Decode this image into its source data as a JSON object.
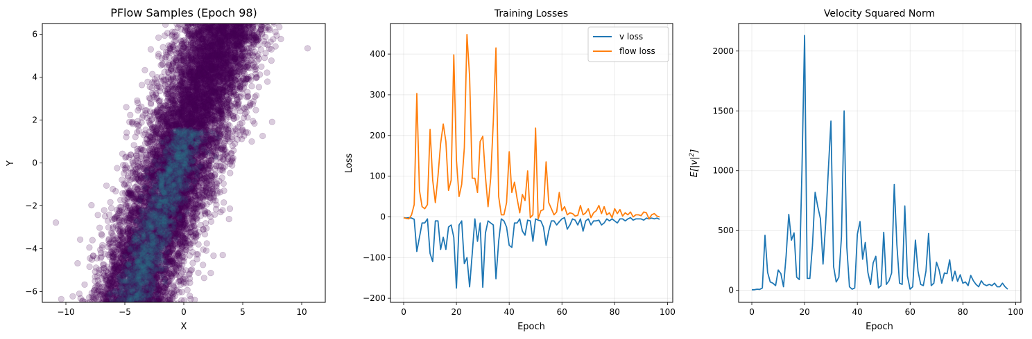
{
  "chart_data": [
    {
      "type": "scatter",
      "title": "PFlow Samples (Epoch 98)",
      "xlabel": "X",
      "ylabel": "Y",
      "xlim": [
        -12,
        12
      ],
      "ylim": [
        -6.5,
        6.5
      ],
      "xticks": [
        -10,
        -5,
        0,
        5,
        10
      ],
      "xtick_labels": [
        "−10",
        "−5",
        "0",
        "5",
        "10"
      ],
      "yticks": [
        -6,
        -4,
        -2,
        0,
        2,
        4,
        6
      ],
      "ytick_labels": [
        "−6",
        "−4",
        "−2",
        "0",
        "2",
        "4",
        "6"
      ],
      "grid": false,
      "point_color": "#440154",
      "dense_color": "#2a788e",
      "point_alpha": 0.2,
      "distribution": {
        "shape": "tilted elongated band",
        "center_line_bottom": [
          -4.5,
          -6.5
        ],
        "center_line_top": [
          3.5,
          6.5
        ],
        "x_spread_sd": 1.8,
        "n_points": 9000
      }
    },
    {
      "type": "line",
      "title": "Training Losses",
      "xlabel": "Epoch",
      "ylabel": "Loss",
      "xlim": [
        -5,
        102
      ],
      "ylim": [
        -210,
        475
      ],
      "xticks": [
        0,
        20,
        40,
        60,
        80,
        100
      ],
      "xtick_labels": [
        "0",
        "20",
        "40",
        "60",
        "80",
        "100"
      ],
      "yticks": [
        -200,
        -100,
        0,
        100,
        200,
        300,
        400
      ],
      "ytick_labels": [
        "−200",
        "−100",
        "0",
        "100",
        "200",
        "300",
        "400"
      ],
      "grid": true,
      "legend_position": "upper right",
      "series": [
        {
          "name": "v loss",
          "color": "#1f77b4",
          "x_start": 0,
          "values": [
            -2,
            -3,
            -2,
            -3,
            -6,
            -85,
            -50,
            -15,
            -15,
            -5,
            -90,
            -110,
            -10,
            -10,
            -80,
            -50,
            -80,
            -25,
            -20,
            -50,
            -175,
            -20,
            -10,
            -115,
            -100,
            -172,
            -90,
            -5,
            -60,
            -15,
            -173,
            -40,
            -10,
            -15,
            -20,
            -152,
            -60,
            -5,
            -10,
            -25,
            -70,
            -75,
            -15,
            -15,
            -5,
            -35,
            -45,
            -8,
            -10,
            -60,
            -5,
            -8,
            -10,
            -25,
            -70,
            -35,
            -10,
            -10,
            -20,
            -12,
            -5,
            -2,
            -30,
            -20,
            -5,
            -8,
            -20,
            -5,
            -35,
            -10,
            -5,
            -20,
            -10,
            -10,
            -8,
            -20,
            -15,
            -5,
            -10,
            -5,
            -10,
            -15,
            -5,
            -5,
            -10,
            -5,
            -2,
            -8,
            -5,
            -5,
            -5,
            -8,
            -3,
            -5,
            -3,
            -5,
            -3,
            -6
          ]
        },
        {
          "name": "flow loss",
          "color": "#ff7f0e",
          "x_start": 0,
          "values": [
            -2,
            -4,
            -5,
            5,
            30,
            303,
            65,
            25,
            20,
            30,
            215,
            90,
            35,
            100,
            180,
            228,
            185,
            65,
            90,
            398,
            140,
            50,
            80,
            170,
            448,
            345,
            95,
            95,
            60,
            185,
            198,
            100,
            25,
            95,
            235,
            415,
            50,
            5,
            5,
            35,
            160,
            60,
            85,
            45,
            10,
            55,
            40,
            113,
            -2,
            5,
            218,
            -5,
            15,
            18,
            135,
            35,
            20,
            5,
            12,
            60,
            15,
            25,
            5,
            10,
            8,
            2,
            4,
            28,
            5,
            10,
            20,
            -2,
            10,
            15,
            28,
            8,
            25,
            5,
            10,
            -2,
            20,
            8,
            18,
            2,
            10,
            5,
            12,
            0,
            5,
            5,
            3,
            12,
            10,
            -5,
            5,
            8,
            2,
            0
          ]
        }
      ]
    },
    {
      "type": "line",
      "title": "Velocity Squared Norm",
      "xlabel": "Epoch",
      "ylabel": "E[|v|²]",
      "ylabel_main": "E[|v|",
      "ylabel_sup": "2",
      "ylabel_tail": "]",
      "xlim": [
        -5,
        102
      ],
      "ylim": [
        -100,
        2230
      ],
      "xticks": [
        0,
        20,
        40,
        60,
        80,
        100
      ],
      "xtick_labels": [
        "0",
        "20",
        "40",
        "60",
        "80",
        "100"
      ],
      "yticks": [
        0,
        500,
        1000,
        1500,
        2000
      ],
      "ytick_labels": [
        "0",
        "500",
        "1000",
        "1500",
        "2000"
      ],
      "grid": true,
      "series": [
        {
          "color": "#1f77b4",
          "x_start": 0,
          "values": [
            5,
            5,
            10,
            8,
            20,
            460,
            150,
            70,
            60,
            40,
            170,
            140,
            30,
            290,
            635,
            420,
            480,
            110,
            90,
            1000,
            2130,
            100,
            100,
            380,
            820,
            700,
            600,
            220,
            560,
            1000,
            1415,
            200,
            70,
            110,
            450,
            1500,
            360,
            30,
            10,
            20,
            470,
            575,
            260,
            400,
            150,
            50,
            230,
            285,
            20,
            40,
            485,
            50,
            80,
            145,
            885,
            380,
            60,
            50,
            705,
            120,
            10,
            30,
            420,
            160,
            50,
            40,
            160,
            475,
            40,
            60,
            235,
            170,
            60,
            145,
            140,
            255,
            80,
            160,
            75,
            130,
            60,
            70,
            40,
            125,
            80,
            50,
            30,
            80,
            50,
            40,
            50,
            40,
            60,
            30,
            30,
            60,
            30,
            10
          ]
        }
      ]
    }
  ]
}
